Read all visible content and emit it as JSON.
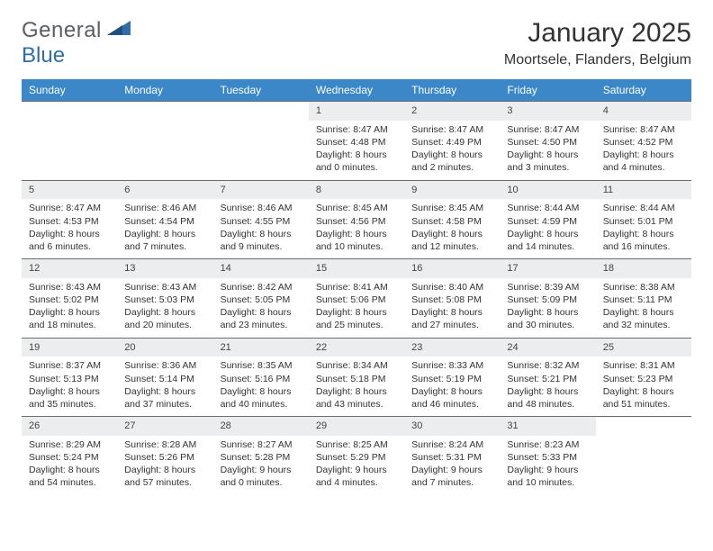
{
  "logo": {
    "text_general": "General",
    "text_blue": "Blue"
  },
  "title": "January 2025",
  "location": "Moortsele, Flanders, Belgium",
  "style": {
    "header_bg": "#3b87c8",
    "header_fg": "#ffffff",
    "daynum_bg": "#ebedef",
    "rule_color": "#6b6b6b",
    "page_bg": "#ffffff",
    "text_color": "#333333",
    "font_size_title": 30,
    "font_size_location": 16,
    "font_size_dayheader": 12,
    "font_size_body": 10.5
  },
  "day_names": [
    "Sunday",
    "Monday",
    "Tuesday",
    "Wednesday",
    "Thursday",
    "Friday",
    "Saturday"
  ],
  "weeks": [
    [
      null,
      null,
      null,
      {
        "n": "1",
        "sr": "8:47 AM",
        "ss": "4:48 PM",
        "dl": "8 hours and 0 minutes."
      },
      {
        "n": "2",
        "sr": "8:47 AM",
        "ss": "4:49 PM",
        "dl": "8 hours and 2 minutes."
      },
      {
        "n": "3",
        "sr": "8:47 AM",
        "ss": "4:50 PM",
        "dl": "8 hours and 3 minutes."
      },
      {
        "n": "4",
        "sr": "8:47 AM",
        "ss": "4:52 PM",
        "dl": "8 hours and 4 minutes."
      }
    ],
    [
      {
        "n": "5",
        "sr": "8:47 AM",
        "ss": "4:53 PM",
        "dl": "8 hours and 6 minutes."
      },
      {
        "n": "6",
        "sr": "8:46 AM",
        "ss": "4:54 PM",
        "dl": "8 hours and 7 minutes."
      },
      {
        "n": "7",
        "sr": "8:46 AM",
        "ss": "4:55 PM",
        "dl": "8 hours and 9 minutes."
      },
      {
        "n": "8",
        "sr": "8:45 AM",
        "ss": "4:56 PM",
        "dl": "8 hours and 10 minutes."
      },
      {
        "n": "9",
        "sr": "8:45 AM",
        "ss": "4:58 PM",
        "dl": "8 hours and 12 minutes."
      },
      {
        "n": "10",
        "sr": "8:44 AM",
        "ss": "4:59 PM",
        "dl": "8 hours and 14 minutes."
      },
      {
        "n": "11",
        "sr": "8:44 AM",
        "ss": "5:01 PM",
        "dl": "8 hours and 16 minutes."
      }
    ],
    [
      {
        "n": "12",
        "sr": "8:43 AM",
        "ss": "5:02 PM",
        "dl": "8 hours and 18 minutes."
      },
      {
        "n": "13",
        "sr": "8:43 AM",
        "ss": "5:03 PM",
        "dl": "8 hours and 20 minutes."
      },
      {
        "n": "14",
        "sr": "8:42 AM",
        "ss": "5:05 PM",
        "dl": "8 hours and 23 minutes."
      },
      {
        "n": "15",
        "sr": "8:41 AM",
        "ss": "5:06 PM",
        "dl": "8 hours and 25 minutes."
      },
      {
        "n": "16",
        "sr": "8:40 AM",
        "ss": "5:08 PM",
        "dl": "8 hours and 27 minutes."
      },
      {
        "n": "17",
        "sr": "8:39 AM",
        "ss": "5:09 PM",
        "dl": "8 hours and 30 minutes."
      },
      {
        "n": "18",
        "sr": "8:38 AM",
        "ss": "5:11 PM",
        "dl": "8 hours and 32 minutes."
      }
    ],
    [
      {
        "n": "19",
        "sr": "8:37 AM",
        "ss": "5:13 PM",
        "dl": "8 hours and 35 minutes."
      },
      {
        "n": "20",
        "sr": "8:36 AM",
        "ss": "5:14 PM",
        "dl": "8 hours and 37 minutes."
      },
      {
        "n": "21",
        "sr": "8:35 AM",
        "ss": "5:16 PM",
        "dl": "8 hours and 40 minutes."
      },
      {
        "n": "22",
        "sr": "8:34 AM",
        "ss": "5:18 PM",
        "dl": "8 hours and 43 minutes."
      },
      {
        "n": "23",
        "sr": "8:33 AM",
        "ss": "5:19 PM",
        "dl": "8 hours and 46 minutes."
      },
      {
        "n": "24",
        "sr": "8:32 AM",
        "ss": "5:21 PM",
        "dl": "8 hours and 48 minutes."
      },
      {
        "n": "25",
        "sr": "8:31 AM",
        "ss": "5:23 PM",
        "dl": "8 hours and 51 minutes."
      }
    ],
    [
      {
        "n": "26",
        "sr": "8:29 AM",
        "ss": "5:24 PM",
        "dl": "8 hours and 54 minutes."
      },
      {
        "n": "27",
        "sr": "8:28 AM",
        "ss": "5:26 PM",
        "dl": "8 hours and 57 minutes."
      },
      {
        "n": "28",
        "sr": "8:27 AM",
        "ss": "5:28 PM",
        "dl": "9 hours and 0 minutes."
      },
      {
        "n": "29",
        "sr": "8:25 AM",
        "ss": "5:29 PM",
        "dl": "9 hours and 4 minutes."
      },
      {
        "n": "30",
        "sr": "8:24 AM",
        "ss": "5:31 PM",
        "dl": "9 hours and 7 minutes."
      },
      {
        "n": "31",
        "sr": "8:23 AM",
        "ss": "5:33 PM",
        "dl": "9 hours and 10 minutes."
      },
      null
    ]
  ],
  "labels": {
    "sunrise": "Sunrise:",
    "sunset": "Sunset:",
    "daylight": "Daylight:"
  }
}
